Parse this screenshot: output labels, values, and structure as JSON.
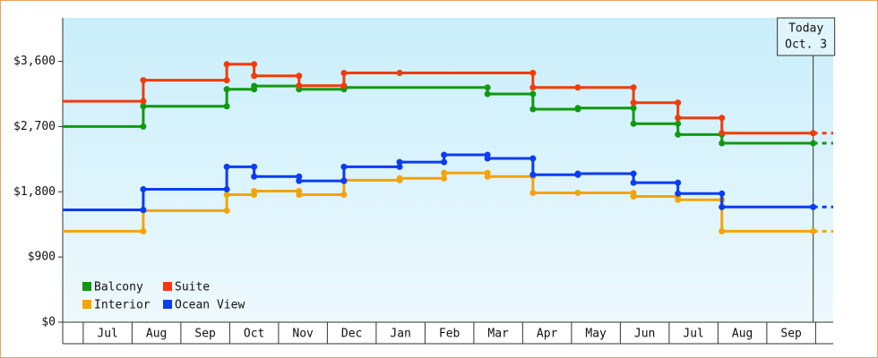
{
  "chart_data": {
    "type": "step",
    "categories": [
      "Jul",
      "Aug",
      "Sep",
      "Oct",
      "Nov",
      "Dec",
      "Jan",
      "Feb",
      "Mar",
      "Apr",
      "May",
      "Jun",
      "Jul",
      "Aug",
      "Sep"
    ],
    "xlim": [
      -0.42,
      15.36
    ],
    "ylim": [
      0,
      4200
    ],
    "yticks": [
      {
        "value": 0,
        "label": "$0"
      },
      {
        "value": 900,
        "label": "$900"
      },
      {
        "value": 1800,
        "label": "$1,800"
      },
      {
        "value": 2700,
        "label": "$2,700"
      },
      {
        "value": 3600,
        "label": "$3,600"
      }
    ],
    "legend": "lower left",
    "annotation": {
      "x": 14.95,
      "lines": [
        "Today",
        "Oct. 3"
      ]
    },
    "series": [
      {
        "name": "Balcony",
        "color": "#109910",
        "x": [
          -0.42,
          1.23,
          2.94,
          3.5,
          4.42,
          5.34,
          8.28,
          9.21,
          10.13,
          11.27,
          12.18,
          13.08,
          14.95
        ],
        "values": [
          2700,
          2980,
          3215,
          3260,
          3215,
          3240,
          3150,
          2940,
          2955,
          2740,
          2590,
          2470,
          2470
        ]
      },
      {
        "name": "Suite",
        "color": "#f03c0a",
        "x": [
          -0.42,
          1.23,
          2.94,
          3.5,
          4.42,
          5.34,
          6.48,
          9.21,
          10.13,
          11.27,
          12.18,
          13.08,
          14.95
        ],
        "values": [
          3050,
          3340,
          3560,
          3400,
          3265,
          3440,
          3440,
          3240,
          3240,
          3030,
          2820,
          2610,
          2610
        ]
      },
      {
        "name": "Interior",
        "color": "#f5a30a",
        "x": [
          -0.42,
          1.23,
          2.94,
          3.5,
          4.42,
          5.34,
          6.48,
          7.39,
          8.28,
          9.21,
          10.13,
          11.27,
          12.18,
          13.08,
          14.95
        ],
        "values": [
          1255,
          1540,
          1760,
          1810,
          1760,
          1960,
          1985,
          2060,
          2010,
          1785,
          1785,
          1735,
          1690,
          1255,
          1255
        ]
      },
      {
        "name": "Ocean View",
        "color": "#0a3cf0",
        "x": [
          -0.42,
          1.23,
          2.94,
          3.5,
          4.42,
          5.34,
          6.48,
          7.39,
          8.28,
          9.21,
          10.13,
          11.27,
          12.18,
          13.08,
          14.95
        ],
        "values": [
          1550,
          1835,
          2145,
          2010,
          1950,
          2145,
          2210,
          2310,
          2260,
          2035,
          2050,
          1925,
          1775,
          1590,
          1590
        ]
      }
    ]
  }
}
